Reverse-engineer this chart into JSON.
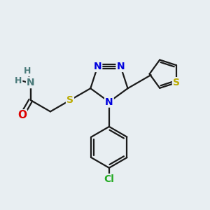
{
  "background_color": "#e8eef2",
  "bond_color": "#1a1a1a",
  "bond_width": 1.6,
  "atom_colors": {
    "C": "#1a1a1a",
    "H": "#6b8a8a",
    "N": "#0000dd",
    "O": "#dd0000",
    "S": "#bbaa00",
    "Cl": "#22aa22"
  },
  "font_size": 10,
  "fig_size": [
    3.0,
    3.0
  ],
  "dpi": 100
}
